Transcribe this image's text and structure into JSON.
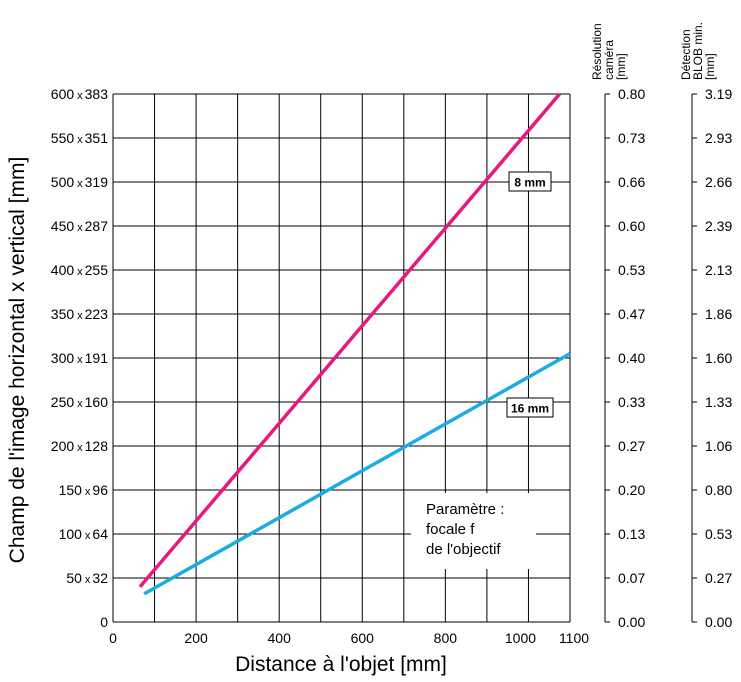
{
  "chart_data": {
    "type": "line",
    "xlabel": "Distance à l'objet [mm]",
    "ylabel": "Champ de l'image horizontal x vertical [mm]",
    "xlim": [
      0,
      1100
    ],
    "ylim": [
      0,
      600
    ],
    "x_ticks": [
      "0",
      "200",
      "400",
      "600",
      "800",
      "1000",
      "1100"
    ],
    "y_ticks": [
      {
        "h": "0",
        "v": ""
      },
      {
        "h": "50",
        "v": "32"
      },
      {
        "h": "100",
        "v": "64"
      },
      {
        "h": "150",
        "v": "96"
      },
      {
        "h": "200",
        "v": "128"
      },
      {
        "h": "250",
        "v": "160"
      },
      {
        "h": "300",
        "v": "191"
      },
      {
        "h": "350",
        "v": "223"
      },
      {
        "h": "400",
        "v": "255"
      },
      {
        "h": "450",
        "v": "287"
      },
      {
        "h": "500",
        "v": "319"
      },
      {
        "h": "550",
        "v": "351"
      },
      {
        "h": "600",
        "v": "383"
      }
    ],
    "grid": true,
    "series": [
      {
        "name": "8 mm",
        "color": "#e6197d",
        "points": [
          [
            65,
            40
          ],
          [
            1075,
            600
          ]
        ]
      },
      {
        "name": "16 mm",
        "color": "#1bace3",
        "points": [
          [
            75,
            32
          ],
          [
            1100,
            305
          ]
        ]
      }
    ],
    "annotation": [
      "Paramètre :",
      "focale f",
      "de l'objectif"
    ],
    "secondary_axes": [
      {
        "header": [
          "Résolution",
          "caméra",
          "[mm]"
        ],
        "ticks": [
          "0.00",
          "0.07",
          "0.13",
          "0.20",
          "0.27",
          "0.33",
          "0.40",
          "0.47",
          "0.53",
          "0.60",
          "0.66",
          "0.73",
          "0.80"
        ]
      },
      {
        "header": [
          "Détection",
          "BLOB min.",
          "[mm]"
        ],
        "ticks": [
          "0.00",
          "0.27",
          "0.53",
          "0.80",
          "1.06",
          "1.33",
          "1.60",
          "1.86",
          "2.13",
          "2.39",
          "2.66",
          "2.93",
          "3.19"
        ]
      }
    ]
  }
}
